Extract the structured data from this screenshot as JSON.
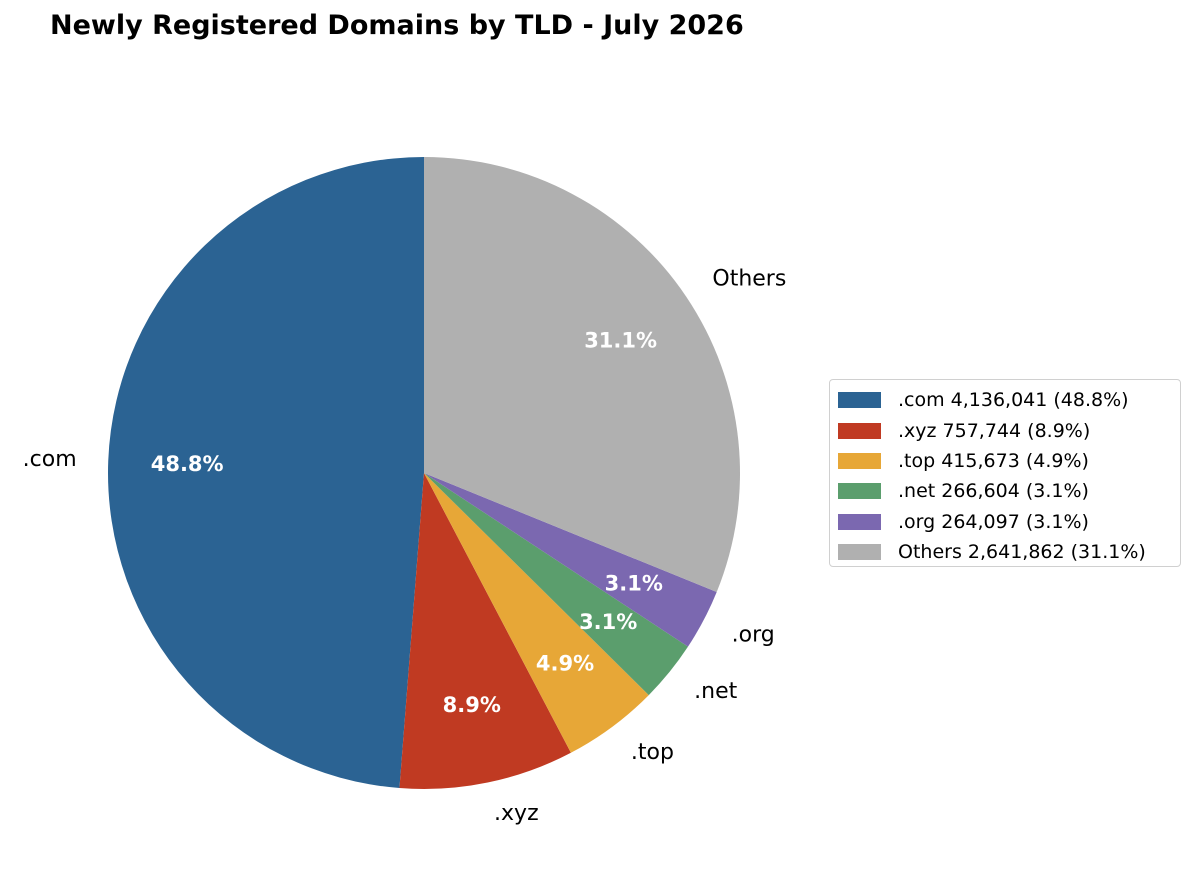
{
  "chart_data": {
    "type": "pie",
    "title": "Newly Registered Domains by TLD - July 2026",
    "start_angle_deg": 90,
    "direction": "counterclockwise",
    "slices": [
      {
        "label": ".com",
        "value": 4136041,
        "percent_label": "48.8%",
        "legend_label": ".com  4,136,041 (48.8%)",
        "color": "#2b6393"
      },
      {
        "label": ".xyz",
        "value": 757744,
        "percent_label": "8.9%",
        "legend_label": ".xyz  757,744 (8.9%)",
        "color": "#c03a22"
      },
      {
        "label": ".top",
        "value": 415673,
        "percent_label": "4.9%",
        "legend_label": ".top  415,673 (4.9%)",
        "color": "#e7a737"
      },
      {
        "label": ".net",
        "value": 266604,
        "percent_label": "3.1%",
        "legend_label": ".net  266,604 (3.1%)",
        "color": "#5b9e6d"
      },
      {
        "label": ".org",
        "value": 264097,
        "percent_label": "3.1%",
        "legend_label": ".org  264,097 (3.1%)",
        "color": "#7b68b0"
      },
      {
        "label": "Others",
        "value": 2641862,
        "percent_label": "31.1%",
        "legend_label": "Others  2,641,862 (31.1%)",
        "color": "#b0b0b0"
      }
    ],
    "legend_position": "right"
  }
}
